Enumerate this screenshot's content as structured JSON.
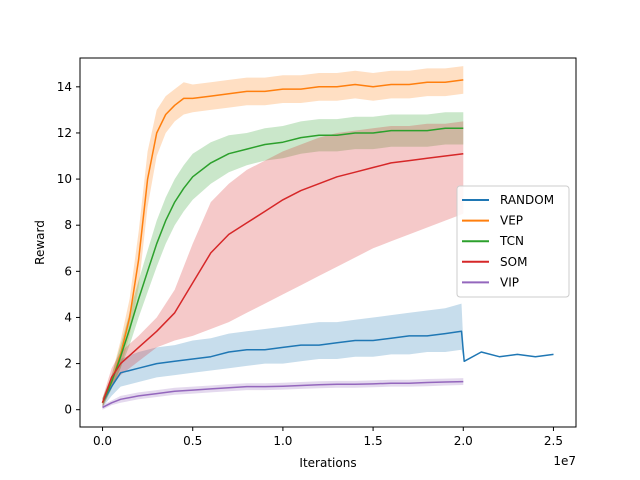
{
  "chart_data": {
    "type": "line",
    "title": "",
    "xlabel": "Iterations",
    "ylabel": "Reward",
    "x_offset_label": "1e7",
    "xlim": [
      -1.25,
      26.25
    ],
    "ylim": [
      -0.75,
      15.25
    ],
    "x_ticks": [
      0,
      0.5,
      1.0,
      1.5,
      2.0,
      2.5
    ],
    "x_tick_labels": [
      "0.0",
      "0.5",
      "1.0",
      "1.5",
      "2.0",
      "2.5"
    ],
    "y_ticks": [
      0,
      2,
      4,
      6,
      8,
      10,
      12,
      14
    ],
    "y_tick_labels": [
      "0",
      "2",
      "4",
      "6",
      "8",
      "10",
      "12",
      "14"
    ],
    "grid": false,
    "legend_position": "center-right",
    "x_units": "1e6 iterations",
    "series": [
      {
        "name": "RANDOM",
        "color": "#1f77b4",
        "x": [
          0,
          0.5,
          1,
          2,
          3,
          4,
          5,
          6,
          7,
          8,
          9,
          10,
          11,
          12,
          13,
          14,
          15,
          16,
          17,
          18,
          19,
          19.9,
          20.05,
          21,
          22,
          23,
          24,
          25
        ],
        "y": [
          0.3,
          1.0,
          1.6,
          1.8,
          2.0,
          2.1,
          2.2,
          2.3,
          2.5,
          2.6,
          2.6,
          2.7,
          2.8,
          2.8,
          2.9,
          3.0,
          3.0,
          3.1,
          3.2,
          3.2,
          3.3,
          3.4,
          2.1,
          2.5,
          2.3,
          2.4,
          2.3,
          2.4
        ],
        "band_low": [
          0.1,
          0.6,
          1.0,
          1.2,
          1.4,
          1.5,
          1.6,
          1.7,
          1.8,
          1.9,
          2.0,
          2.0,
          2.1,
          2.2,
          2.2,
          2.3,
          2.3,
          2.4,
          2.4,
          2.5,
          2.5,
          2.6,
          2.1,
          2.5,
          2.3,
          2.4,
          2.3,
          2.4
        ],
        "band_high": [
          0.5,
          1.4,
          2.2,
          2.5,
          2.7,
          2.8,
          3.0,
          3.1,
          3.3,
          3.4,
          3.5,
          3.6,
          3.7,
          3.8,
          3.8,
          3.9,
          4.0,
          4.1,
          4.2,
          4.3,
          4.4,
          4.6,
          2.1,
          2.5,
          2.3,
          2.4,
          2.3,
          2.4
        ]
      },
      {
        "name": "VEP",
        "color": "#ff7f0e",
        "x": [
          0,
          0.5,
          1,
          1.5,
          2,
          2.5,
          3,
          3.5,
          4,
          4.5,
          5,
          6,
          7,
          8,
          9,
          10,
          11,
          12,
          13,
          14,
          15,
          16,
          17,
          18,
          19,
          20
        ],
        "y": [
          0.3,
          1.2,
          2.4,
          4.0,
          6.5,
          10.0,
          12.0,
          12.8,
          13.2,
          13.5,
          13.5,
          13.6,
          13.7,
          13.8,
          13.8,
          13.9,
          13.9,
          14.0,
          14.0,
          14.1,
          14.0,
          14.1,
          14.1,
          14.2,
          14.2,
          14.3
        ],
        "band_low": [
          0.1,
          0.9,
          1.8,
          3.2,
          5.3,
          8.8,
          11.0,
          12.0,
          12.5,
          12.8,
          12.9,
          13.0,
          13.1,
          13.2,
          13.2,
          13.3,
          13.3,
          13.4,
          13.4,
          13.5,
          13.4,
          13.5,
          13.5,
          13.6,
          13.6,
          13.7
        ],
        "band_high": [
          0.5,
          1.5,
          3.0,
          4.8,
          7.7,
          11.2,
          13.0,
          13.6,
          13.9,
          14.2,
          14.1,
          14.2,
          14.3,
          14.4,
          14.4,
          14.5,
          14.5,
          14.6,
          14.6,
          14.7,
          14.6,
          14.7,
          14.7,
          14.8,
          14.8,
          14.9
        ]
      },
      {
        "name": "TCN",
        "color": "#2ca02c",
        "x": [
          0,
          0.5,
          1,
          1.5,
          2,
          2.5,
          3,
          3.5,
          4,
          4.5,
          5,
          6,
          7,
          8,
          9,
          10,
          11,
          12,
          13,
          14,
          15,
          16,
          17,
          18,
          19,
          20
        ],
        "y": [
          0.3,
          1.2,
          2.3,
          3.5,
          4.8,
          6.0,
          7.2,
          8.2,
          9.0,
          9.6,
          10.1,
          10.7,
          11.1,
          11.3,
          11.5,
          11.6,
          11.8,
          11.9,
          11.9,
          12.0,
          12.0,
          12.1,
          12.1,
          12.1,
          12.2,
          12.2
        ],
        "band_low": [
          0.1,
          0.9,
          1.8,
          2.8,
          4.0,
          5.1,
          6.2,
          7.2,
          8.0,
          8.6,
          9.1,
          9.8,
          10.3,
          10.6,
          10.8,
          10.9,
          11.1,
          11.2,
          11.2,
          11.3,
          11.3,
          11.4,
          11.4,
          11.4,
          11.5,
          11.5
        ],
        "band_high": [
          0.5,
          1.5,
          2.8,
          4.2,
          5.6,
          6.9,
          8.2,
          9.2,
          10.0,
          10.6,
          11.1,
          11.6,
          11.9,
          12.0,
          12.2,
          12.3,
          12.5,
          12.6,
          12.6,
          12.7,
          12.7,
          12.8,
          12.8,
          12.8,
          12.9,
          12.9
        ]
      },
      {
        "name": "SOM",
        "color": "#d62728",
        "x": [
          0,
          0.5,
          1,
          2,
          3,
          4,
          5,
          6,
          7,
          8,
          9,
          10,
          11,
          12,
          13,
          14,
          15,
          16,
          17,
          18,
          19,
          20
        ],
        "y": [
          0.3,
          1.4,
          2.0,
          2.7,
          3.4,
          4.2,
          5.5,
          6.8,
          7.6,
          8.1,
          8.6,
          9.1,
          9.5,
          9.8,
          10.1,
          10.3,
          10.5,
          10.7,
          10.8,
          10.9,
          11.0,
          11.1
        ],
        "band_low": [
          0.1,
          1.0,
          1.5,
          2.1,
          2.7,
          3.0,
          3.2,
          3.5,
          3.8,
          4.2,
          4.6,
          5.0,
          5.4,
          5.8,
          6.2,
          6.6,
          7.0,
          7.3,
          7.6,
          7.9,
          8.2,
          8.5
        ],
        "band_high": [
          0.5,
          1.8,
          2.5,
          3.2,
          4.0,
          5.2,
          7.2,
          9.0,
          9.8,
          10.4,
          10.8,
          11.2,
          11.5,
          11.8,
          12.0,
          12.1,
          12.2,
          12.3,
          12.3,
          12.4,
          12.4,
          12.5
        ]
      },
      {
        "name": "VIP",
        "color": "#9467bd",
        "x": [
          0,
          0.5,
          1,
          2,
          3,
          4,
          5,
          6,
          7,
          8,
          9,
          10,
          11,
          12,
          13,
          14,
          15,
          16,
          17,
          18,
          19,
          20
        ],
        "y": [
          0.1,
          0.3,
          0.45,
          0.6,
          0.7,
          0.8,
          0.85,
          0.9,
          0.95,
          1.0,
          1.0,
          1.02,
          1.05,
          1.08,
          1.1,
          1.1,
          1.12,
          1.15,
          1.15,
          1.18,
          1.2,
          1.22
        ],
        "band_low": [
          0.0,
          0.2,
          0.3,
          0.45,
          0.55,
          0.65,
          0.7,
          0.75,
          0.8,
          0.85,
          0.85,
          0.87,
          0.9,
          0.93,
          0.95,
          0.95,
          0.97,
          1.0,
          1.0,
          1.02,
          1.05,
          1.07
        ],
        "band_high": [
          0.2,
          0.4,
          0.6,
          0.75,
          0.85,
          0.95,
          1.0,
          1.05,
          1.1,
          1.15,
          1.15,
          1.17,
          1.2,
          1.23,
          1.25,
          1.25,
          1.27,
          1.3,
          1.3,
          1.33,
          1.35,
          1.37
        ]
      }
    ]
  }
}
